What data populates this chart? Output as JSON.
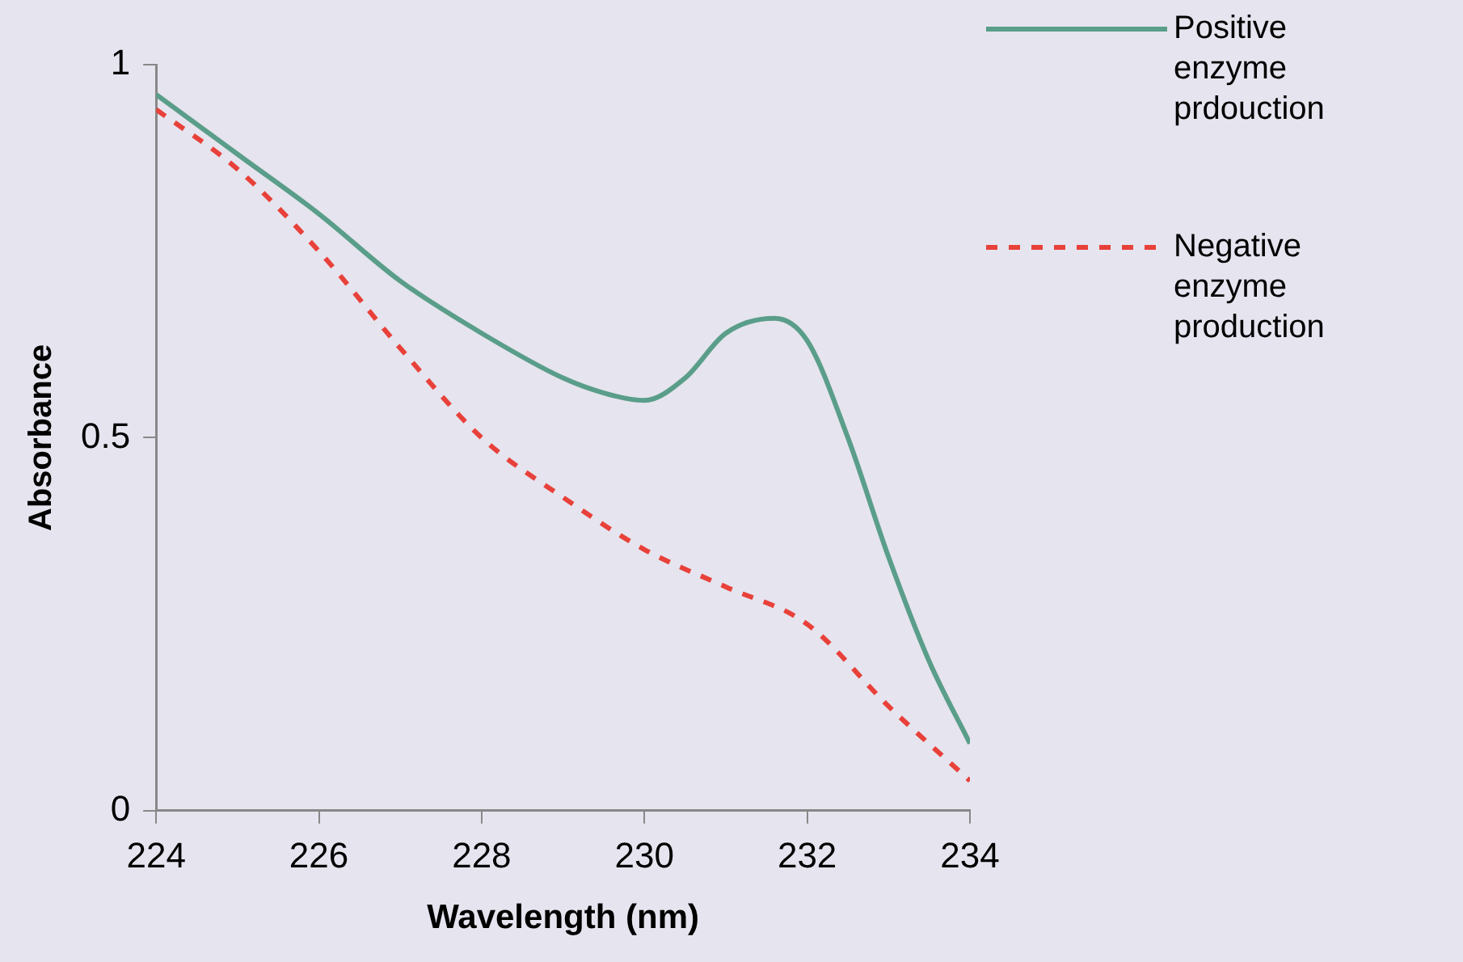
{
  "chart_data": {
    "type": "line",
    "xlabel": "Wavelength (nm)",
    "ylabel": "Absorbance",
    "xlim": [
      224,
      234
    ],
    "xticks": [
      224,
      226,
      228,
      230,
      232,
      234
    ],
    "ylim": [
      0,
      1
    ],
    "yticks": [
      0,
      0.5,
      1
    ],
    "grid": false,
    "legend": "top right",
    "marker": "none",
    "series": [
      {
        "name": "Positive enzyme prdouction",
        "color": "#5a9e8a",
        "line_style": "solid",
        "x": [
          224,
          225,
          226,
          227,
          228,
          229,
          229.5,
          230,
          230.5,
          231,
          231.6,
          232,
          232.5,
          233,
          233.5,
          234
        ],
        "values": [
          0.96,
          0.88,
          0.8,
          0.71,
          0.64,
          0.58,
          0.56,
          0.55,
          0.58,
          0.64,
          0.66,
          0.63,
          0.5,
          0.34,
          0.2,
          0.09
        ]
      },
      {
        "name": "Negative enzyme production",
        "color": "#e8413a",
        "line_style": "dashed",
        "x": [
          224,
          225,
          226,
          227,
          228,
          229,
          230,
          231,
          232,
          233,
          234
        ],
        "values": [
          0.94,
          0.86,
          0.75,
          0.62,
          0.5,
          0.42,
          0.35,
          0.3,
          0.25,
          0.14,
          0.04
        ]
      }
    ]
  }
}
